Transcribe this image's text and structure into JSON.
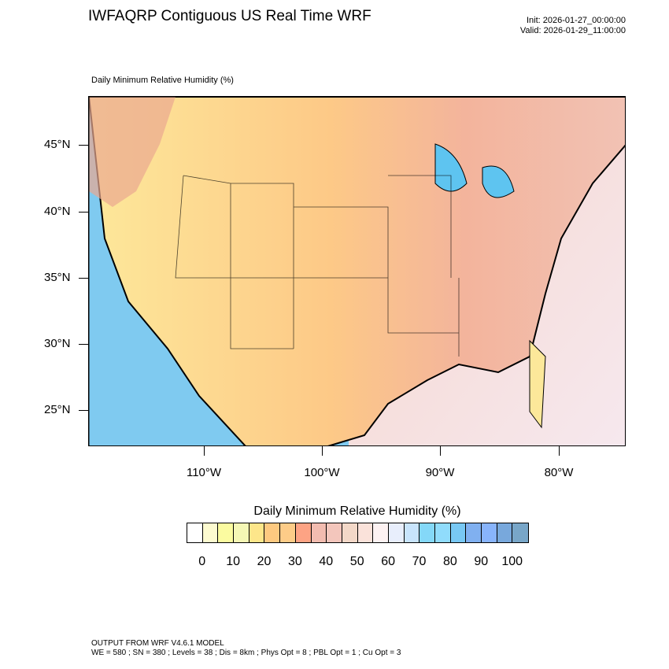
{
  "header": {
    "title": "IWFAQRP Contiguous US Real Time WRF",
    "init": "Init: 2026-01-27_00:00:00",
    "valid": "Valid: 2026-01-29_11:00:00"
  },
  "map": {
    "subtitle": "Daily Minimum Relative Humidity   (%)",
    "lat_labels": [
      "45°N",
      "40°N",
      "35°N",
      "30°N",
      "25°N"
    ],
    "lon_labels": [
      "110°W",
      "100°W",
      "90°W",
      "80°W"
    ]
  },
  "colorbar": {
    "title": "Daily Minimum Relative Humidity  (%)",
    "colors": [
      "#ffffff",
      "#fdfbd0",
      "#fbfba0",
      "#f5f7b5",
      "#fde68a",
      "#fdc980",
      "#fdcc88",
      "#fda384",
      "#f2bcb0",
      "#f3c6bc",
      "#f3d8c8",
      "#fae2da",
      "#fdf2f2",
      "#e8eefc",
      "#c8e4fc",
      "#84d8f8",
      "#90dcfc",
      "#78c8f4",
      "#80b0f0",
      "#88b4fc",
      "#78a8dc",
      "#78a6c8"
    ],
    "labels": [
      "0",
      "10",
      "20",
      "30",
      "40",
      "50",
      "60",
      "70",
      "80",
      "90",
      "100"
    ]
  },
  "footer": {
    "line1": "OUTPUT FROM WRF V4.6.1 MODEL",
    "line2": "WE = 580 ; SN = 380 ; Levels = 38 ; Dis = 8km ; Phys Opt = 8 ; PBL Opt = 1 ; Cu Opt = 3"
  }
}
